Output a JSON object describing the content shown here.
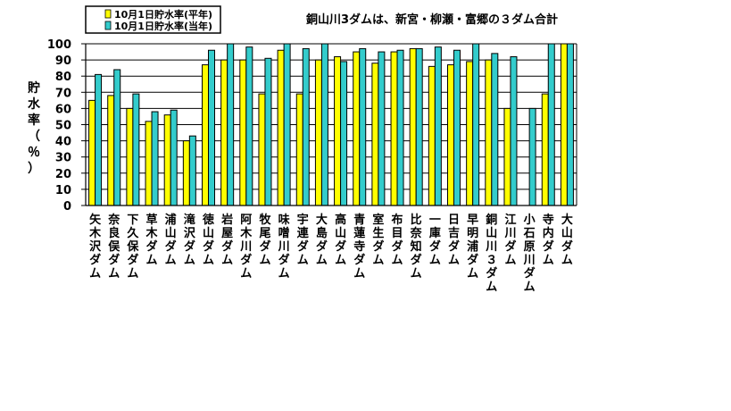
{
  "chart_data": {
    "type": "bar",
    "title": "",
    "annotation": "銅山川3ダムは、新宮・柳瀬・富郷の３ダム合計",
    "ylabel": "貯水率（％）",
    "xlabel": "",
    "ylim": [
      0,
      100
    ],
    "yticks": [
      0,
      10,
      20,
      30,
      40,
      50,
      60,
      70,
      80,
      90,
      100
    ],
    "grid": true,
    "legend_position": "top-left",
    "categories": [
      "矢木沢ダム",
      "奈良俣ダム",
      "下久保ダム",
      "草木ダム",
      "浦山ダム",
      "滝沢ダム",
      "徳山ダム",
      "岩屋ダム",
      "阿木川ダム",
      "牧尾ダム",
      "味噌川ダム",
      "宇連ダム",
      "大島ダム",
      "高山ダム",
      "青蓮寺ダム",
      "室生ダム",
      "布目ダム",
      "比奈知ダム",
      "一庫ダム",
      "日吉ダム",
      "早明浦ダム",
      "銅山川３ダム",
      "江川ダム",
      "小石原川ダム",
      "寺内ダム",
      "大山ダム"
    ],
    "series": [
      {
        "name": "10月1日貯水率(平年)",
        "color": "#FFFF00",
        "values": [
          65,
          68,
          60,
          52,
          56,
          40,
          87,
          90,
          90,
          69,
          96,
          69,
          90,
          92,
          95,
          88,
          95,
          97,
          86,
          87,
          89,
          90,
          60,
          null,
          69,
          100
        ]
      },
      {
        "name": "10月1日貯水率(当年)",
        "color": "#33CCCC",
        "values": [
          81,
          84,
          69,
          58,
          59,
          43,
          96,
          100,
          98,
          91,
          100,
          97,
          100,
          89,
          97,
          95,
          96,
          97,
          98,
          96,
          100,
          94,
          92,
          60,
          100,
          100
        ]
      }
    ]
  }
}
